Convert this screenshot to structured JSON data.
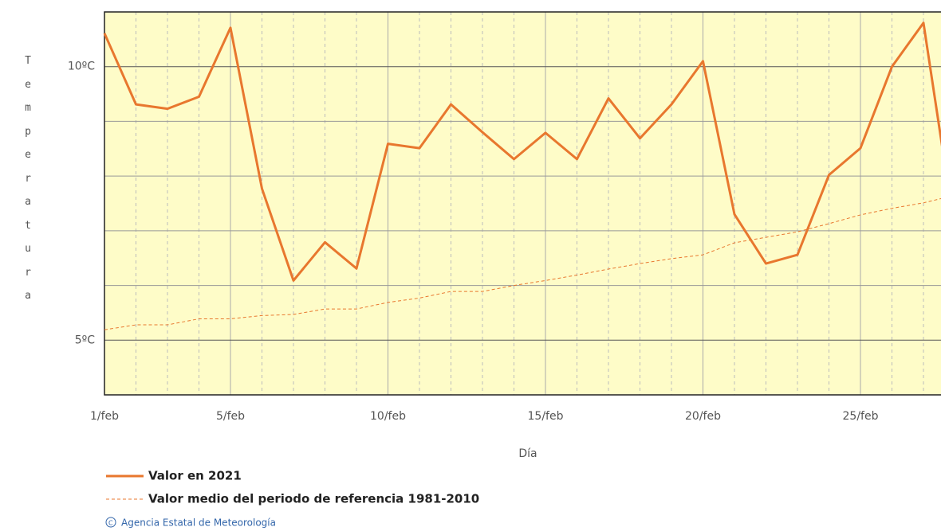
{
  "chart_data": {
    "type": "line",
    "x_label": "Día",
    "y_label": "Temperatura",
    "categories": [
      "1/feb",
      null,
      null,
      null,
      "5/feb",
      null,
      null,
      null,
      null,
      "10/feb",
      null,
      null,
      null,
      null,
      "15/feb",
      null,
      null,
      null,
      null,
      "20/feb",
      null,
      null,
      null,
      null,
      "25/feb",
      null,
      null,
      null
    ],
    "series": [
      {
        "name": "Valor en 2021",
        "color": "#e8772e",
        "style": "solid",
        "values": [
          10.61,
          9.31,
          9.23,
          9.45,
          10.71,
          7.77,
          6.09,
          6.79,
          6.31,
          8.59,
          8.51,
          9.31,
          8.8,
          8.31,
          8.79,
          8.31,
          9.42,
          8.69,
          9.31,
          10.1,
          7.3,
          6.4,
          6.56,
          8.02,
          8.51,
          10.0,
          10.8,
          7.0
        ]
      },
      {
        "name": "Valor medio del periodo de referencia 1981-2010",
        "color": "#e8772e",
        "style": "dashed",
        "values": [
          5.19,
          5.28,
          5.28,
          5.39,
          5.39,
          5.45,
          5.47,
          5.57,
          5.57,
          5.69,
          5.77,
          5.89,
          5.89,
          6.0,
          6.09,
          6.19,
          6.3,
          6.4,
          6.49,
          6.56,
          6.78,
          6.88,
          6.98,
          7.13,
          7.29,
          7.41,
          7.51,
          7.65
        ]
      }
    ],
    "ylim": [
      4,
      11
    ],
    "yticks": [
      {
        "value": 5,
        "label": "5ºC"
      },
      {
        "value": 10,
        "label": "10ºC"
      }
    ],
    "minor_yticks": [
      6,
      7,
      8,
      9
    ],
    "grid": true,
    "background": "#fefcc8",
    "credit": "Agencia Estatal de Meteorología"
  }
}
